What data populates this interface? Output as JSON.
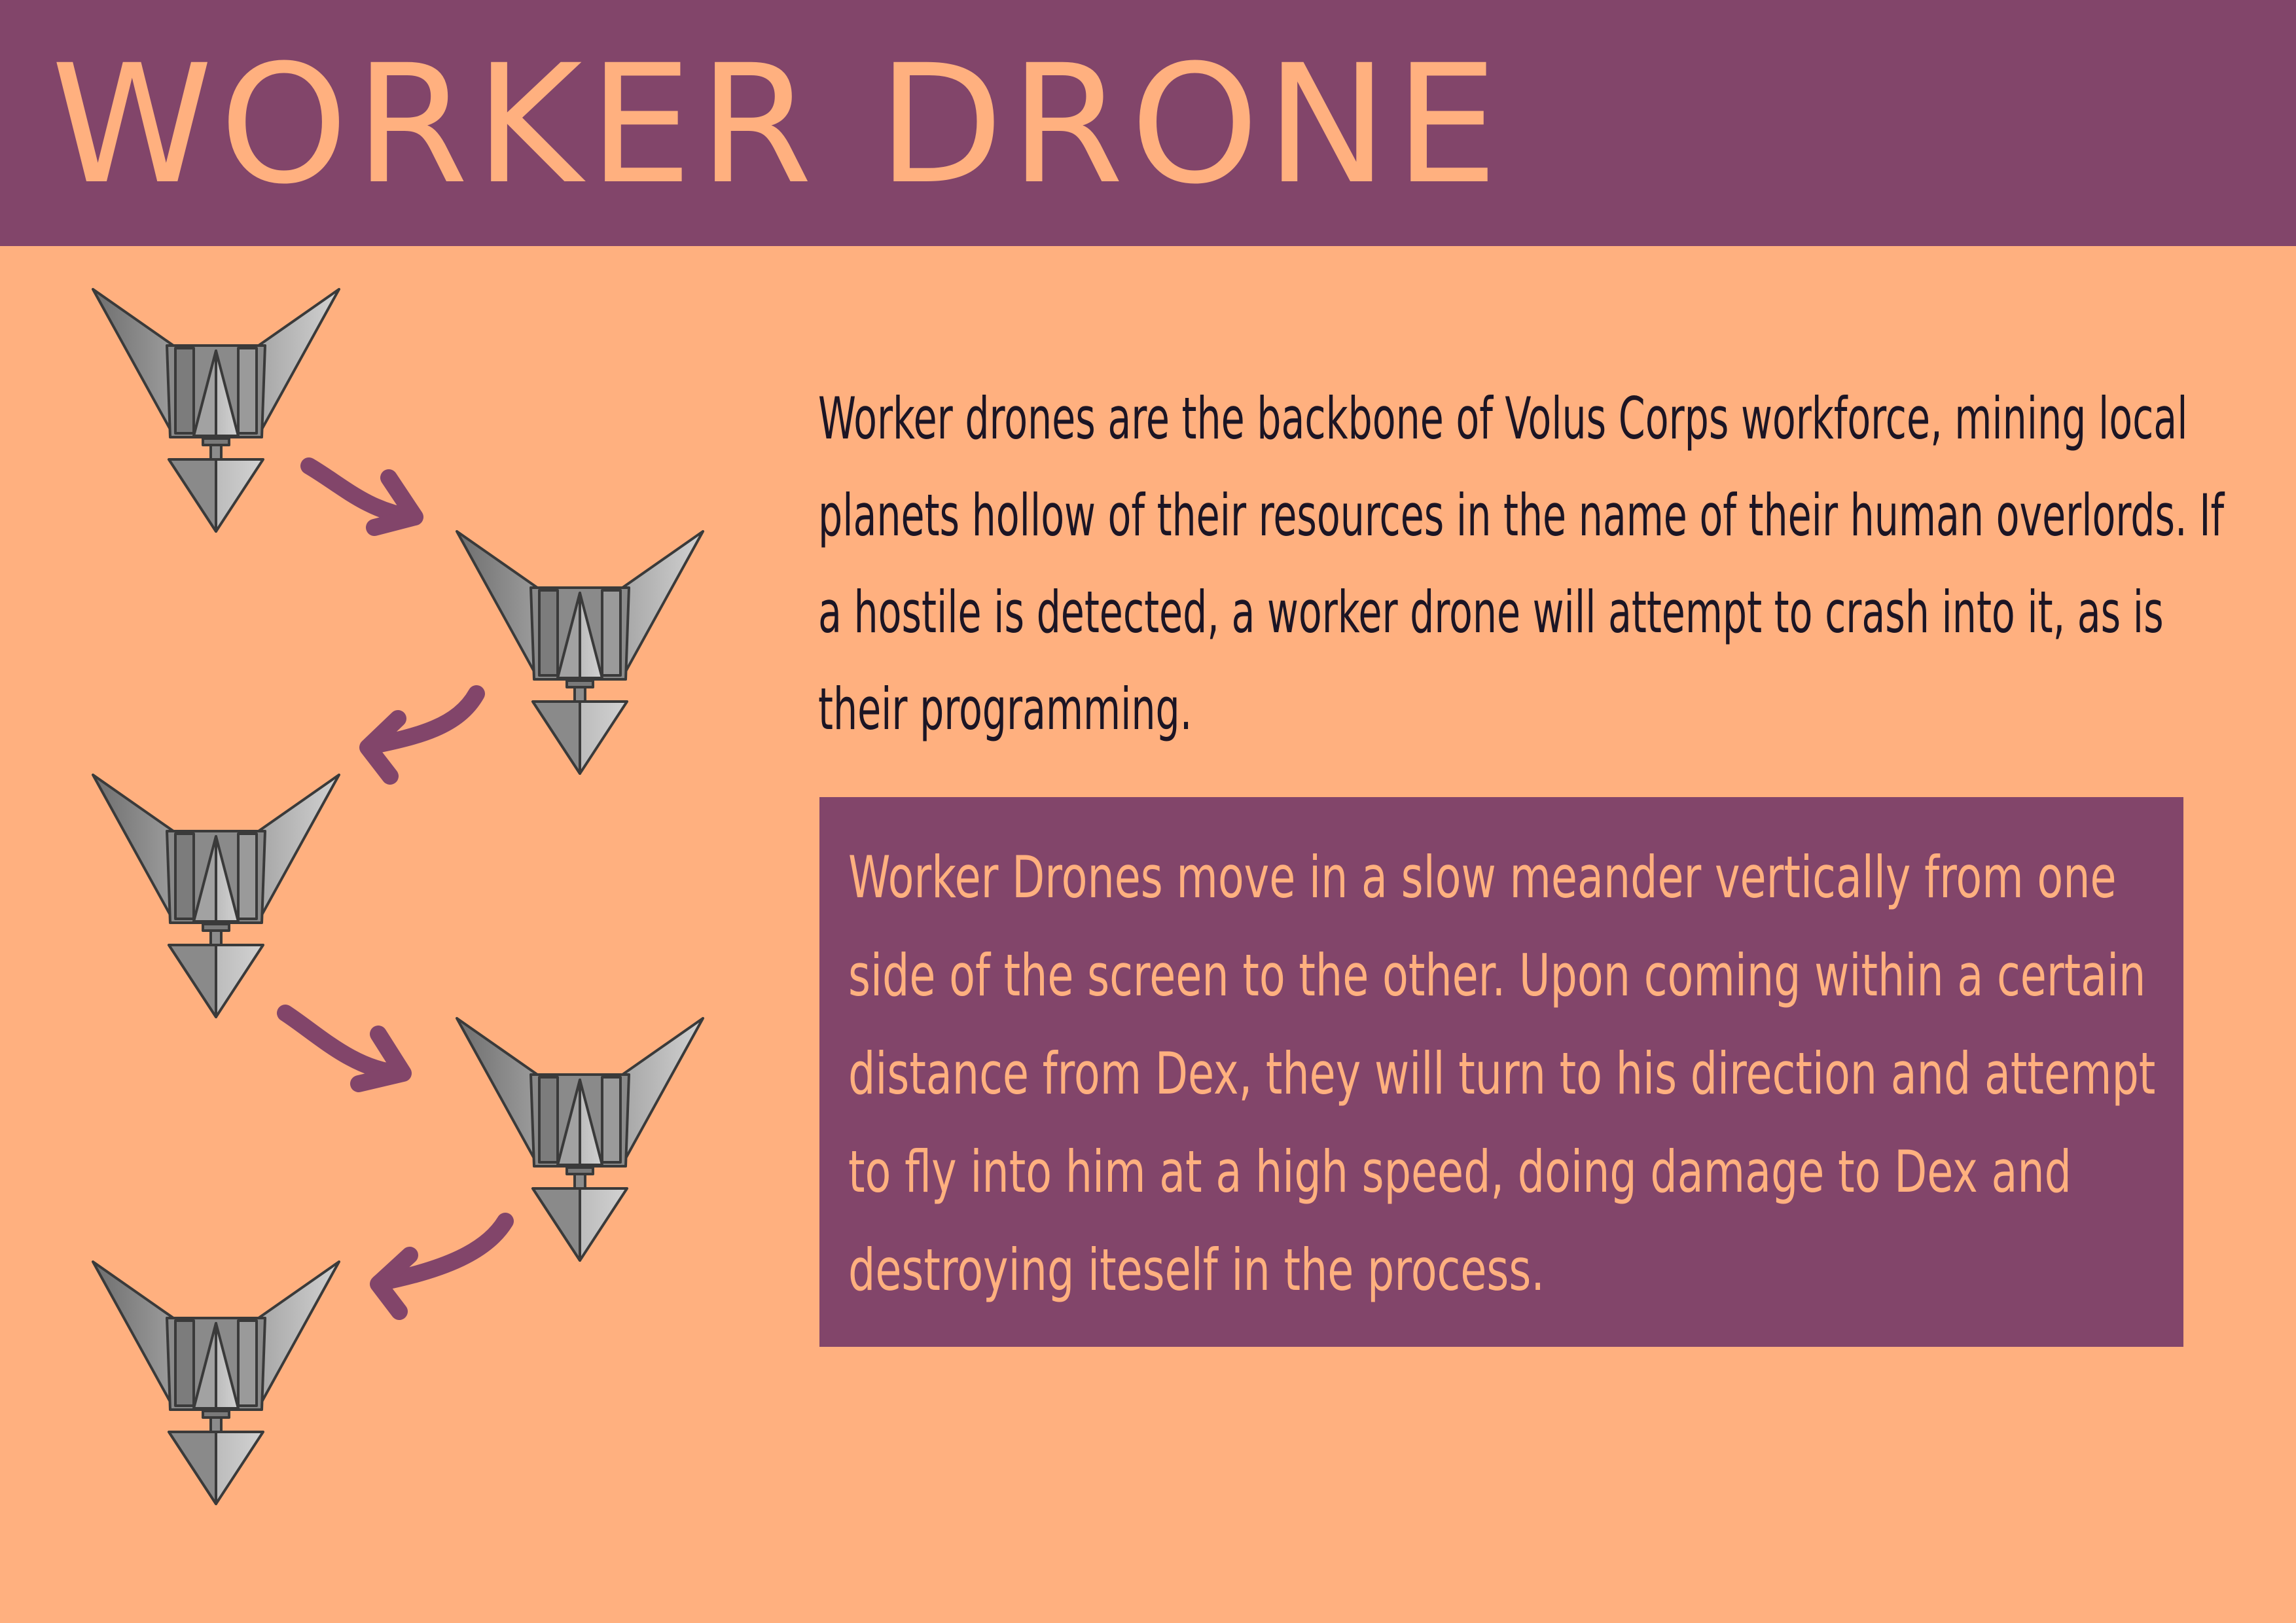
{
  "header": {
    "title": "WORKER DRONE"
  },
  "description": {
    "text": "Worker drones are the backbone of Volus Corps workforce, mining local planets hollow of their resources in the name of their human overlords. If a hostile is detected, a worker drone will attempt to crash into it, as is their programming."
  },
  "behavior": {
    "text": "Worker Drones move in a slow meander vertically from one side of the screen to the other. Upon coming within a certain distance from Dex, they will turn to his direction and attempt to fly into him at a high speed, doing damage to Dex and destroying iteself in the process."
  },
  "colors": {
    "background": "#FFB07F",
    "accent": "#82456A",
    "text_dark": "#1C1524",
    "drone_gray": "#8E8E8E"
  },
  "icons": {
    "drone": "worker-drone-sprite",
    "arrow": "movement-arrow"
  }
}
